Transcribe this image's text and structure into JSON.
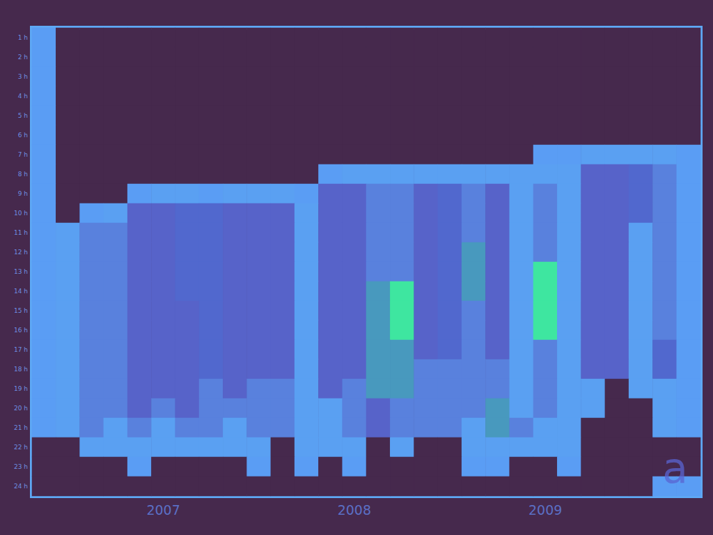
{
  "chart_data": {
    "type": "heatmap",
    "x": [
      null,
      null,
      null,
      null,
      null,
      "2007",
      null,
      null,
      null,
      null,
      null,
      null,
      null,
      "2008",
      null,
      null,
      null,
      null,
      null,
      null,
      null,
      "2009",
      null,
      null,
      null,
      null,
      null,
      null
    ],
    "y": [
      "1 h",
      "2 h",
      "3 h",
      "4 h",
      "5 h",
      "6 h",
      "7 h",
      "8 h",
      "9 h",
      "10 h",
      "11 h",
      "12 h",
      "13 h",
      "14 h",
      "15 h",
      "16 h",
      "17 h",
      "18 h",
      "19 h",
      "20 h",
      "21 h",
      "22 h",
      "23 h",
      "24 h"
    ],
    "values": [
      [
        2,
        0,
        0,
        0,
        0,
        0,
        0,
        0,
        0,
        0,
        0,
        0,
        0,
        0,
        0,
        0,
        0,
        0,
        0,
        0,
        0,
        0,
        0,
        0,
        0,
        0,
        0,
        0
      ],
      [
        2,
        0,
        0,
        0,
        0,
        0,
        0,
        0,
        0,
        0,
        0,
        0,
        0,
        0,
        0,
        0,
        0,
        0,
        0,
        0,
        0,
        0,
        0,
        0,
        0,
        0,
        0,
        0
      ],
      [
        2,
        0,
        0,
        0,
        0,
        0,
        0,
        0,
        0,
        0,
        0,
        0,
        0,
        0,
        0,
        0,
        0,
        0,
        0,
        0,
        0,
        0,
        0,
        0,
        0,
        0,
        0,
        0
      ],
      [
        2,
        0,
        0,
        0,
        0,
        0,
        0,
        0,
        0,
        0,
        0,
        0,
        0,
        0,
        0,
        0,
        0,
        0,
        0,
        0,
        0,
        0,
        0,
        0,
        0,
        0,
        0,
        0
      ],
      [
        2,
        0,
        0,
        0,
        0,
        0,
        0,
        0,
        0,
        0,
        0,
        0,
        0,
        0,
        0,
        0,
        0,
        0,
        0,
        0,
        0,
        0,
        0,
        0,
        0,
        0,
        0,
        0
      ],
      [
        2,
        0,
        0,
        0,
        0,
        0,
        0,
        0,
        0,
        0,
        0,
        0,
        0,
        0,
        0,
        0,
        0,
        0,
        0,
        0,
        0,
        0,
        0,
        0,
        0,
        0,
        0,
        0
      ],
      [
        2,
        0,
        0,
        0,
        0,
        0,
        0,
        0,
        0,
        0,
        0,
        0,
        0,
        0,
        0,
        0,
        0,
        0,
        0,
        0,
        0,
        2,
        2,
        3,
        3,
        3,
        3,
        2
      ],
      [
        2,
        0,
        0,
        0,
        0,
        0,
        0,
        0,
        0,
        0,
        0,
        0,
        2,
        3,
        3,
        3,
        3,
        3,
        3,
        3,
        3,
        3,
        3,
        5,
        5,
        6,
        4,
        2
      ],
      [
        2,
        0,
        0,
        0,
        2,
        3,
        3,
        2,
        3,
        3,
        3,
        2,
        5,
        5,
        4,
        4,
        5,
        6,
        4,
        5,
        3,
        4,
        3,
        5,
        5,
        6,
        4,
        2
      ],
      [
        2,
        0,
        2,
        3,
        5,
        5,
        6,
        6,
        5,
        5,
        5,
        3,
        5,
        5,
        4,
        4,
        5,
        6,
        4,
        5,
        3,
        4,
        3,
        5,
        5,
        6,
        4,
        2
      ],
      [
        2,
        3,
        4,
        4,
        5,
        5,
        6,
        6,
        5,
        5,
        5,
        3,
        5,
        5,
        4,
        4,
        5,
        6,
        4,
        5,
        3,
        4,
        3,
        5,
        5,
        3,
        4,
        2
      ],
      [
        2,
        3,
        4,
        4,
        5,
        5,
        6,
        6,
        5,
        5,
        5,
        3,
        5,
        5,
        4,
        4,
        5,
        6,
        7,
        5,
        3,
        4,
        3,
        5,
        5,
        3,
        4,
        2
      ],
      [
        2,
        3,
        4,
        4,
        5,
        5,
        6,
        6,
        5,
        5,
        5,
        3,
        5,
        5,
        4,
        4,
        5,
        6,
        7,
        5,
        3,
        8,
        3,
        5,
        5,
        3,
        4,
        2
      ],
      [
        2,
        3,
        4,
        4,
        5,
        5,
        6,
        6,
        5,
        5,
        5,
        3,
        5,
        5,
        7,
        8,
        5,
        6,
        7,
        5,
        3,
        8,
        3,
        5,
        5,
        3,
        4,
        2
      ],
      [
        2,
        3,
        4,
        4,
        5,
        5,
        5,
        6,
        5,
        5,
        5,
        3,
        5,
        5,
        7,
        8,
        5,
        6,
        4,
        5,
        3,
        8,
        3,
        5,
        5,
        3,
        4,
        2
      ],
      [
        2,
        3,
        4,
        4,
        5,
        5,
        5,
        6,
        5,
        5,
        5,
        3,
        5,
        5,
        7,
        8,
        5,
        6,
        4,
        5,
        3,
        8,
        3,
        5,
        5,
        3,
        4,
        2
      ],
      [
        2,
        3,
        4,
        4,
        5,
        5,
        5,
        6,
        5,
        5,
        5,
        3,
        5,
        5,
        7,
        7,
        5,
        6,
        4,
        5,
        3,
        4,
        3,
        5,
        5,
        3,
        6,
        2
      ],
      [
        2,
        3,
        4,
        4,
        5,
        5,
        5,
        6,
        5,
        5,
        5,
        3,
        5,
        5,
        7,
        7,
        4,
        4,
        4,
        4,
        3,
        4,
        3,
        5,
        5,
        3,
        6,
        2
      ],
      [
        2,
        3,
        4,
        4,
        5,
        5,
        5,
        4,
        5,
        4,
        4,
        3,
        5,
        4,
        7,
        7,
        4,
        4,
        4,
        4,
        3,
        4,
        3,
        3,
        0,
        3,
        3,
        2
      ],
      [
        2,
        3,
        4,
        4,
        5,
        4,
        5,
        4,
        4,
        4,
        4,
        3,
        3,
        4,
        5,
        4,
        4,
        4,
        4,
        7,
        3,
        4,
        3,
        3,
        0,
        0,
        3,
        2
      ],
      [
        2,
        3,
        4,
        3,
        4,
        3,
        4,
        4,
        3,
        4,
        4,
        3,
        3,
        4,
        5,
        4,
        4,
        4,
        3,
        7,
        4,
        3,
        3,
        0,
        0,
        0,
        3,
        2
      ],
      [
        0,
        0,
        3,
        3,
        3,
        3,
        3,
        3,
        3,
        3,
        0,
        3,
        3,
        3,
        0,
        3,
        0,
        0,
        3,
        3,
        3,
        3,
        3,
        0,
        0,
        0,
        0,
        0
      ],
      [
        0,
        0,
        0,
        0,
        2,
        0,
        0,
        0,
        0,
        2,
        0,
        2,
        0,
        2,
        0,
        0,
        0,
        0,
        2,
        2,
        0,
        0,
        2,
        0,
        0,
        0,
        0,
        0
      ],
      [
        0,
        0,
        0,
        0,
        0,
        0,
        0,
        0,
        0,
        0,
        0,
        0,
        0,
        0,
        0,
        0,
        0,
        0,
        0,
        0,
        0,
        0,
        0,
        0,
        0,
        0,
        2,
        2
      ]
    ],
    "annotation": "a",
    "grid": false
  }
}
